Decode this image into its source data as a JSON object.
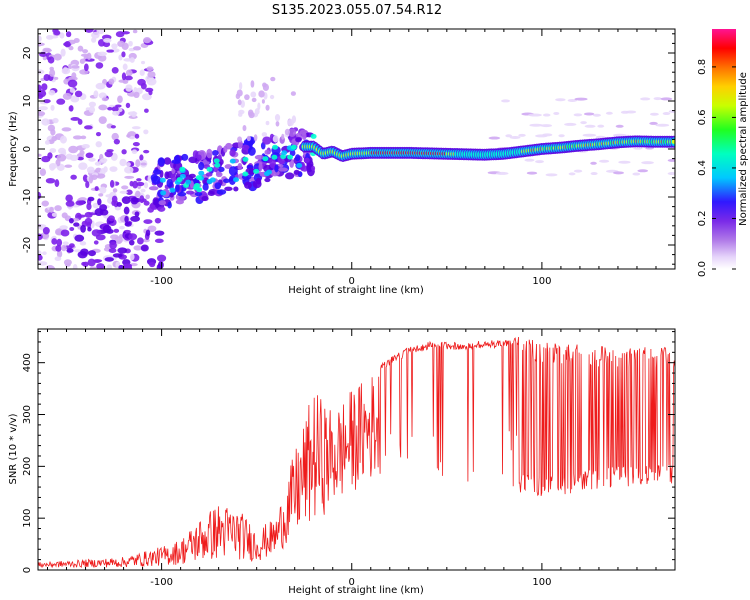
{
  "title": "S135.2023.055.07.54.R12",
  "colors": {
    "snr_line": "#ee1c1c",
    "axis": "#000000",
    "colormap": [
      "#ffffff",
      "#d9b8f5",
      "#8a2be2",
      "#5a00e0",
      "#1010ff",
      "#00e5ff",
      "#00ff00",
      "#ffff00",
      "#ff8c00",
      "#ff0000",
      "#ff1493"
    ]
  },
  "chart_data": [
    {
      "type": "heatmap",
      "title": "",
      "xlabel": "Height of straight line (km)",
      "ylabel": "Frequency (Hz)",
      "xlim": [
        -165,
        170
      ],
      "ylim": [
        -25,
        25
      ],
      "xticks": [
        -100,
        0,
        100
      ],
      "yticks": [
        -20,
        -10,
        0,
        10,
        20
      ],
      "colorbar": {
        "label": "Normalized spectral amplitude",
        "range": [
          0.0,
          0.95
        ],
        "ticks": [
          "0.0",
          "0.2",
          "0.4",
          "0.6",
          "0.8"
        ],
        "tick_values": [
          0.0,
          0.2,
          0.4,
          0.6,
          0.8
        ]
      },
      "ridge_x": [
        -20,
        -15,
        -10,
        -5,
        0,
        10,
        30,
        50,
        70,
        80,
        90,
        100,
        110,
        120,
        130,
        140,
        150,
        160,
        170
      ],
      "ridge_freq": [
        0.5,
        -1.0,
        -0.5,
        -1.5,
        -1.0,
        -0.8,
        -0.8,
        -1.0,
        -1.2,
        -1.0,
        -0.5,
        0.0,
        0.3,
        0.7,
        1.0,
        1.4,
        1.6,
        1.5,
        1.5
      ]
    },
    {
      "type": "line",
      "title": "",
      "xlabel": "Height of straight line (km)",
      "ylabel": "SNR (10 * v/v)",
      "xlim": [
        -165,
        170
      ],
      "ylim": [
        0,
        465
      ],
      "xticks": [
        -100,
        0,
        100
      ],
      "yticks": [
        0,
        100,
        200,
        300,
        400
      ],
      "series": [
        {
          "envelope_x": [
            -165,
            -140,
            -120,
            -100,
            -90,
            -80,
            -70,
            -60,
            -50,
            -40,
            -30,
            -20,
            -10,
            0,
            10,
            20,
            30,
            40,
            60,
            80,
            88,
            100,
            120,
            140,
            170
          ],
          "upper": [
            15,
            20,
            25,
            45,
            60,
            100,
            130,
            120,
            80,
            100,
            230,
            350,
            310,
            350,
            380,
            410,
            430,
            440,
            440,
            445,
            450,
            440,
            435,
            430,
            430
          ],
          "lower": [
            5,
            5,
            5,
            8,
            10,
            15,
            20,
            20,
            15,
            30,
            60,
            90,
            120,
            150,
            170,
            200,
            180,
            160,
            160,
            160,
            150,
            140,
            150,
            160,
            165
          ]
        }
      ]
    }
  ]
}
